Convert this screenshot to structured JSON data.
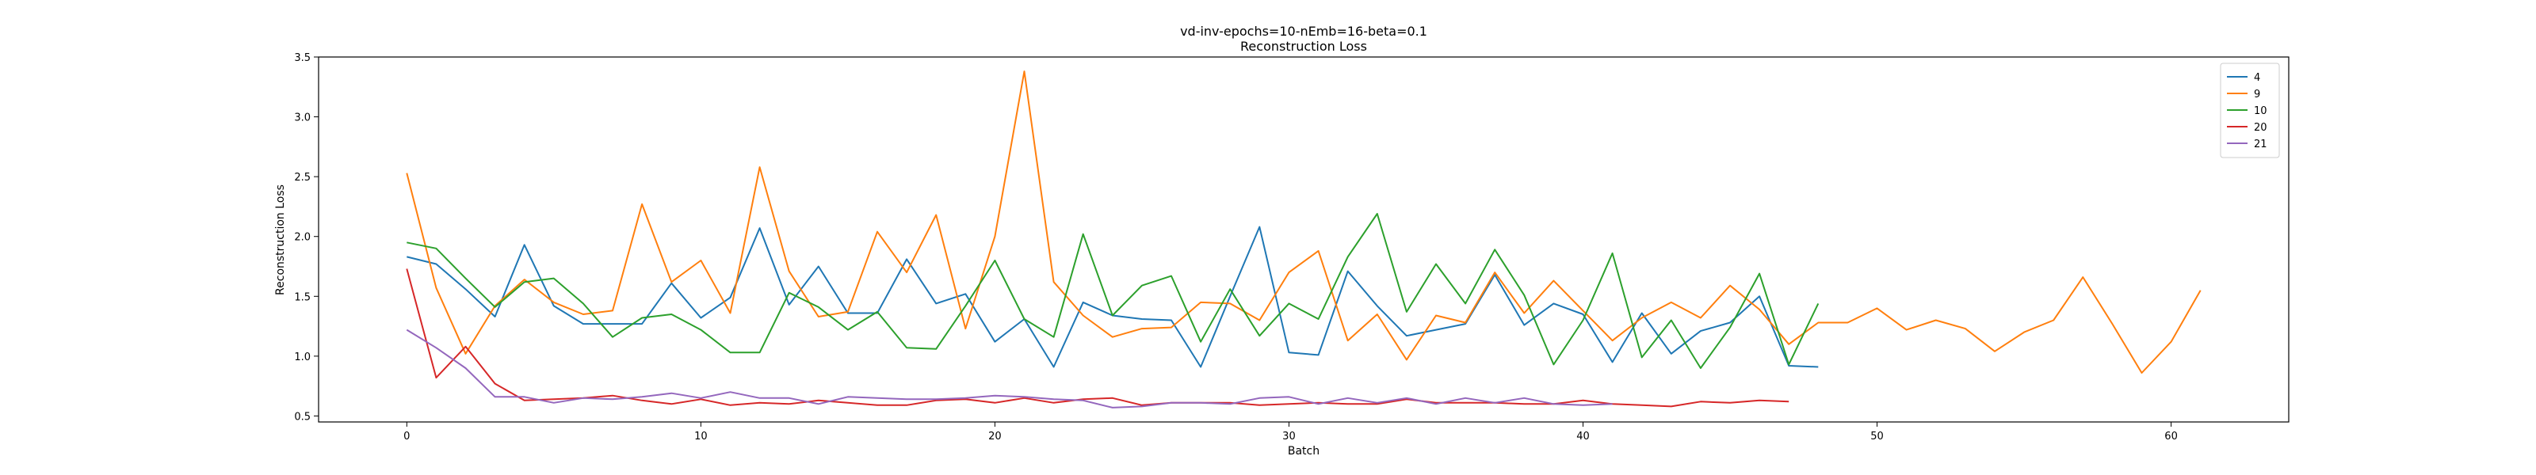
{
  "chart_data": {
    "type": "line",
    "title": "vd-inv-epochs=10-nEmb=16-beta=0.1",
    "subtitle": "Reconstruction Loss",
    "xlabel": "Batch",
    "ylabel": "Reconstruction Loss",
    "xlim": [
      -3,
      64
    ],
    "ylim": [
      0.45,
      3.5
    ],
    "xticks": [
      0,
      10,
      20,
      30,
      40,
      50,
      60
    ],
    "yticks": [
      0.5,
      1.0,
      1.5,
      2.0,
      2.5,
      3.0,
      3.5
    ],
    "ytick_labels": [
      "0.5",
      "1.0",
      "1.5",
      "2.0",
      "2.5",
      "3.0",
      "3.5"
    ],
    "grid": false,
    "legend": "top-right",
    "series": [
      {
        "name": "4",
        "color": "#1f77b4",
        "values": [
          1.83,
          1.77,
          1.56,
          1.33,
          1.93,
          1.42,
          1.27,
          1.27,
          1.27,
          1.61,
          1.32,
          1.49,
          2.07,
          1.43,
          1.75,
          1.36,
          1.36,
          1.81,
          1.44,
          1.52,
          1.12,
          1.31,
          0.91,
          1.45,
          1.34,
          1.31,
          1.3,
          0.91,
          1.5,
          2.08,
          1.03,
          1.01,
          1.71,
          1.42,
          1.17,
          1.22,
          1.27,
          1.68,
          1.26,
          1.44,
          1.35,
          0.95,
          1.36,
          1.02,
          1.21,
          1.28,
          1.5,
          0.92,
          0.91
        ]
      },
      {
        "name": "9",
        "color": "#ff7f0e",
        "values": [
          2.53,
          1.57,
          1.02,
          1.42,
          1.64,
          1.45,
          1.35,
          1.38,
          2.27,
          1.62,
          1.8,
          1.36,
          2.58,
          1.71,
          1.33,
          1.37,
          2.04,
          1.7,
          2.18,
          1.23,
          2.0,
          3.38,
          1.62,
          1.34,
          1.16,
          1.23,
          1.24,
          1.45,
          1.44,
          1.3,
          1.7,
          1.88,
          1.13,
          1.35,
          0.97,
          1.34,
          1.28,
          1.7,
          1.36,
          1.63,
          1.38,
          1.13,
          1.32,
          1.45,
          1.32,
          1.59,
          1.39,
          1.1,
          1.28,
          1.28,
          1.4,
          1.22,
          1.3,
          1.23,
          1.04,
          1.2,
          1.3,
          1.66,
          1.27,
          0.86,
          1.12,
          1.55
        ]
      },
      {
        "name": "10",
        "color": "#2ca02c",
        "values": [
          1.95,
          1.9,
          1.65,
          1.41,
          1.62,
          1.65,
          1.44,
          1.16,
          1.32,
          1.35,
          1.22,
          1.03,
          1.03,
          1.53,
          1.41,
          1.22,
          1.37,
          1.07,
          1.06,
          1.42,
          1.8,
          1.31,
          1.16,
          2.02,
          1.34,
          1.59,
          1.67,
          1.12,
          1.56,
          1.17,
          1.44,
          1.31,
          1.83,
          2.19,
          1.37,
          1.77,
          1.44,
          1.89,
          1.51,
          0.93,
          1.3,
          1.86,
          0.99,
          1.3,
          0.9,
          1.24,
          1.69,
          0.93,
          1.44
        ]
      },
      {
        "name": "20",
        "color": "#d62728",
        "values": [
          1.73,
          0.82,
          1.08,
          0.77,
          0.63,
          0.64,
          0.65,
          0.67,
          0.63,
          0.6,
          0.64,
          0.59,
          0.61,
          0.6,
          0.63,
          0.61,
          0.59,
          0.59,
          0.63,
          0.64,
          0.61,
          0.65,
          0.61,
          0.64,
          0.65,
          0.59,
          0.61,
          0.61,
          0.61,
          0.59,
          0.6,
          0.61,
          0.6,
          0.6,
          0.64,
          0.61,
          0.61,
          0.61,
          0.6,
          0.6,
          0.63,
          0.6,
          0.59,
          0.58,
          0.62,
          0.61,
          0.63,
          0.62
        ]
      },
      {
        "name": "21",
        "color": "#9467bd",
        "values": [
          1.22,
          1.07,
          0.9,
          0.66,
          0.66,
          0.61,
          0.65,
          0.64,
          0.66,
          0.69,
          0.65,
          0.7,
          0.65,
          0.65,
          0.6,
          0.66,
          0.65,
          0.64,
          0.64,
          0.65,
          0.67,
          0.66,
          0.64,
          0.63,
          0.57,
          0.58,
          0.61,
          0.61,
          0.6,
          0.65,
          0.66,
          0.6,
          0.65,
          0.61,
          0.65,
          0.6,
          0.65,
          0.61,
          0.65,
          0.6,
          0.59,
          0.6
        ]
      }
    ]
  }
}
